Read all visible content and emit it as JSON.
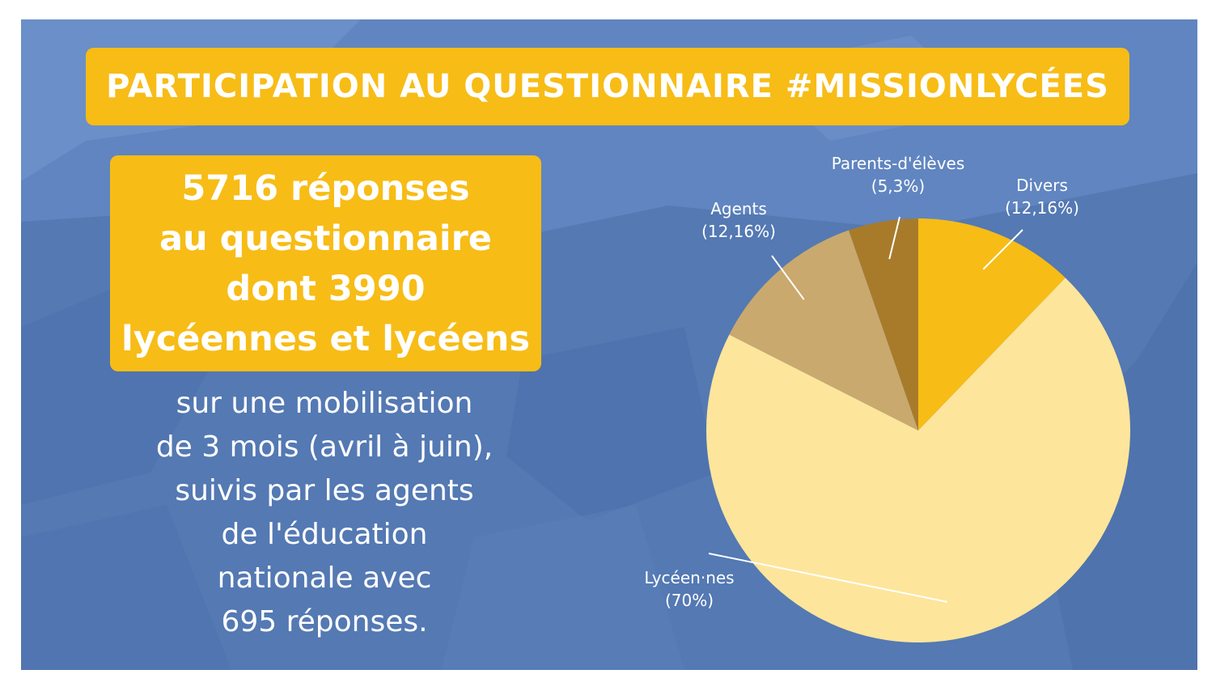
{
  "title": "PARTICIPATION AU QUESTIONNAIRE #MISSIONLYCÉES",
  "highlight": {
    "lines": [
      "5716 réponses",
      "au questionnaire",
      "dont 3990",
      "lycéennes et lycéens"
    ]
  },
  "description": {
    "lines": [
      "sur une mobilisation",
      "de 3 mois (avril à juin),",
      "suivis par les agents",
      "de l'éducation",
      "nationale avec",
      "695 réponses."
    ]
  },
  "colors": {
    "background": "#5479b3",
    "banner": "#f7bc16",
    "text": "#ffffff"
  },
  "chart_data": {
    "type": "pie",
    "slices": [
      {
        "label": "Divers",
        "value_label": "(12,16%)",
        "value": 12.16,
        "color": "#f7bc16"
      },
      {
        "label": "Lycéen·nes",
        "value_label": "(70%)",
        "value": 70,
        "color": "#fde59b"
      },
      {
        "label": "Agents",
        "value_label": "(12,16%)",
        "value": 12.16,
        "color": "#c9a96e"
      },
      {
        "label": "Parents-d'élèves",
        "value_label": "(5,3%)",
        "value": 5.3,
        "color": "#a87b2b"
      }
    ],
    "title": "",
    "legend": "none"
  }
}
